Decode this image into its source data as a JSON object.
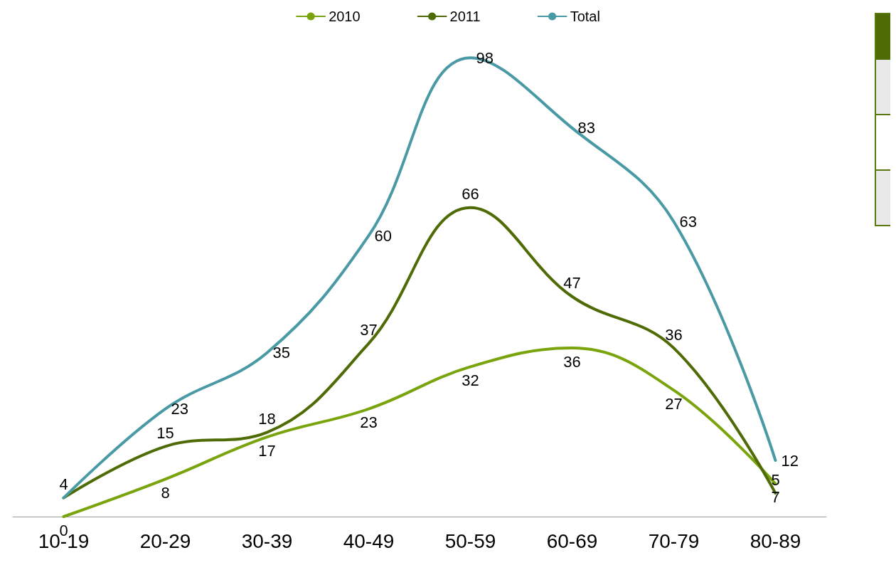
{
  "chart_data": {
    "type": "line",
    "categories": [
      "10-19",
      "20-29",
      "30-39",
      "40-49",
      "50-59",
      "60-69",
      "70-79",
      "80-89"
    ],
    "series": [
      {
        "name": "2010",
        "color": "#7aa40c",
        "values": [
          0,
          8,
          17,
          23,
          32,
          36,
          27,
          7
        ]
      },
      {
        "name": "2011",
        "color": "#4e6b06",
        "values": [
          4,
          15,
          18,
          37,
          66,
          47,
          36,
          5
        ]
      },
      {
        "name": "Total",
        "color": "#4a9aa5",
        "values": [
          4,
          23,
          35,
          60,
          98,
          83,
          63,
          12
        ],
        "value_labels": [
          null,
          "23",
          "35",
          "60",
          "98",
          "83",
          "63",
          "12"
        ]
      }
    ],
    "data_labels": true,
    "legend": "top",
    "grid": false,
    "marker": "none",
    "line_style": "solid"
  }
}
